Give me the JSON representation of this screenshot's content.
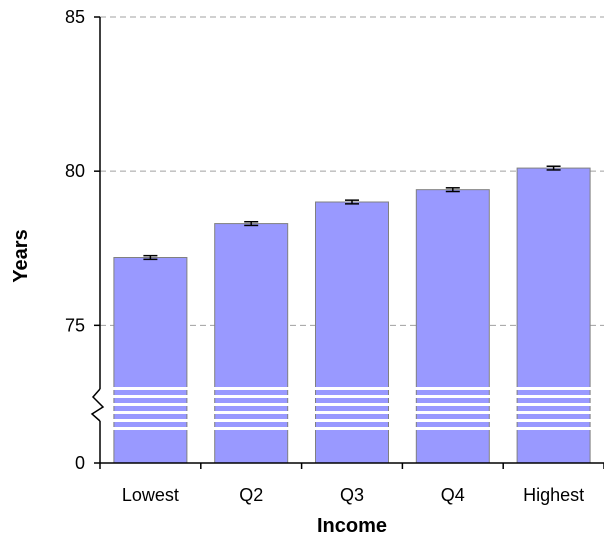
{
  "chart_data": {
    "type": "bar",
    "title": "",
    "xlabel": "Income",
    "ylabel": "Years",
    "categories": [
      "Lowest",
      "Q2",
      "Q3",
      "Q4",
      "Highest"
    ],
    "values": [
      77.2,
      78.3,
      79.0,
      79.4,
      80.1
    ],
    "error": [
      0.06,
      0.06,
      0.06,
      0.06,
      0.06
    ],
    "y_ticks": [
      "0",
      "75",
      "80",
      "85"
    ],
    "ylim": [
      73,
      85
    ],
    "axis_break": {
      "from": 0,
      "to": 73
    },
    "grid": true,
    "legend": "none",
    "colors": {
      "bar": "#9999ff",
      "bar_edge": "#808080",
      "grid": "#a0a0a0",
      "break_stripe": "#ffffff"
    }
  }
}
